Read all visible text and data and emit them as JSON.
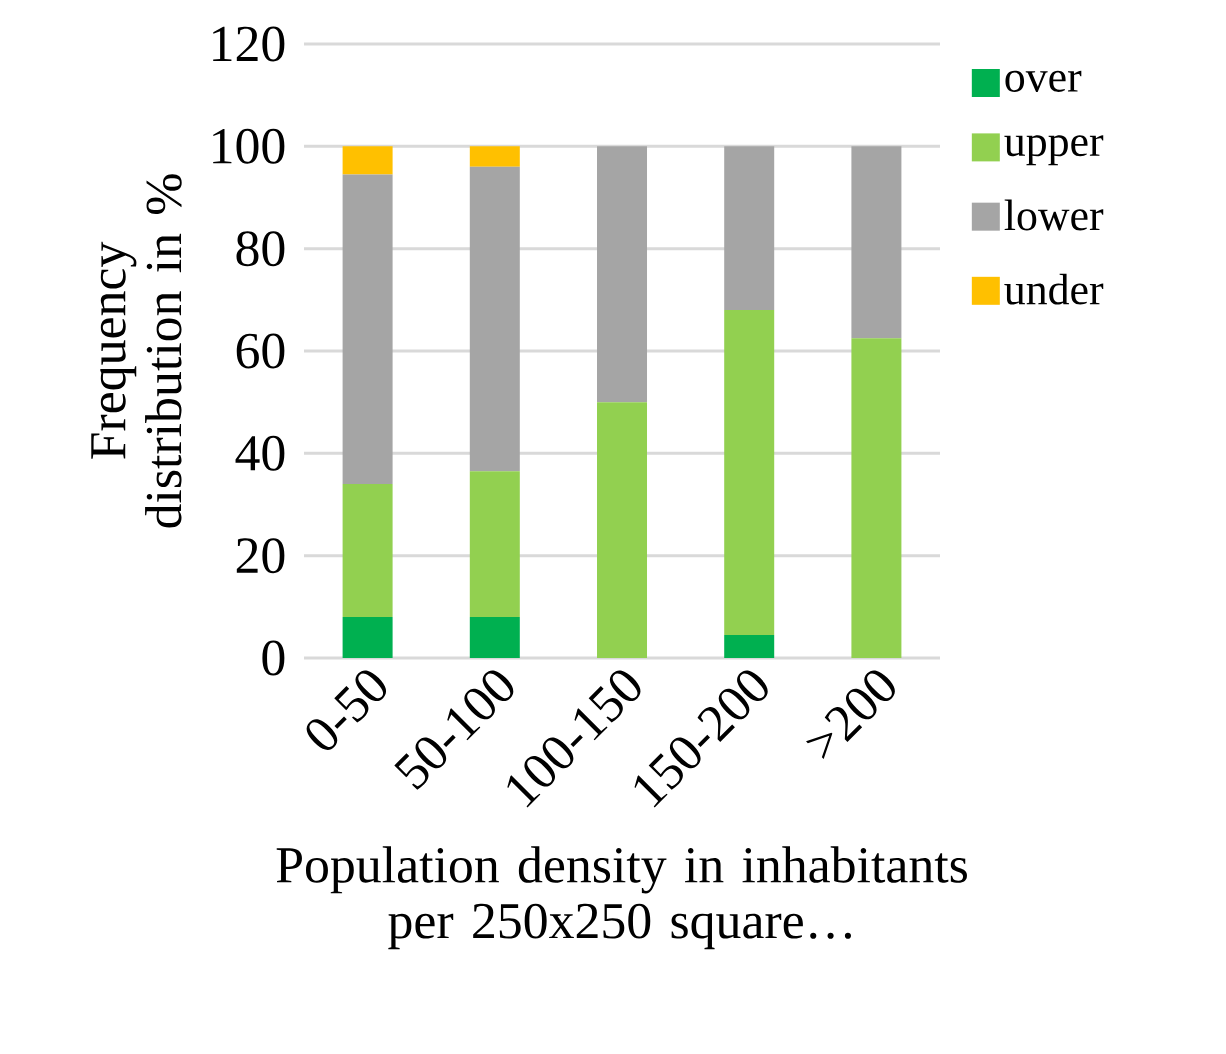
{
  "chart_data": {
    "type": "bar",
    "stacked": true,
    "ylabel": "Frequency distribution in %",
    "xlabel": "Population density in inhabitants per 250x250 square…",
    "categories": [
      "0-50",
      "50-100",
      "100-150",
      "150-200",
      ">200"
    ],
    "series": [
      {
        "name": "over",
        "color": "#00b050",
        "values": [
          8,
          8,
          0,
          4.5,
          0
        ]
      },
      {
        "name": "upper",
        "color": "#92d050",
        "values": [
          26,
          28.5,
          50,
          63.5,
          62.5
        ]
      },
      {
        "name": "lower",
        "color": "#a5a5a5",
        "values": [
          60.5,
          59.5,
          50,
          32,
          37.5
        ]
      },
      {
        "name": "under",
        "color": "#ffc000",
        "values": [
          5.5,
          4,
          0,
          0,
          0
        ]
      }
    ],
    "ylim": [
      0,
      120
    ],
    "yticks": [
      0,
      20,
      40,
      60,
      80,
      100,
      120
    ],
    "grid": "y",
    "legend": "right"
  }
}
